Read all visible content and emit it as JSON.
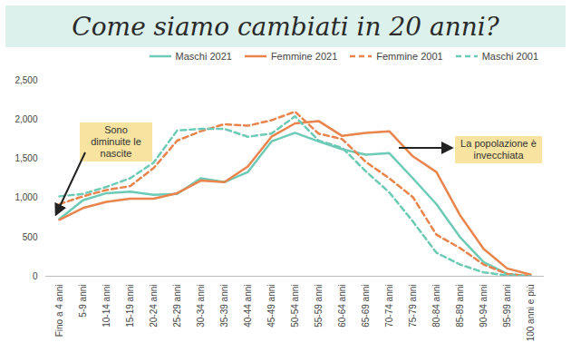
{
  "chart_data": {
    "type": "line",
    "title": "Come siamo cambiati in 20 anni?",
    "annotations": [
      "Sono diminuite le nascite",
      "La popolazione è invecchiata"
    ],
    "categories": [
      "Fino a 4 anni",
      "5-9 anni",
      "10-14 anni",
      "15-19 anni",
      "20-24 anni",
      "25-29 anni",
      "30-34 anni",
      "35-39 anni",
      "40-44 anni",
      "45-49 anni",
      "50-54 anni",
      "55-59 anni",
      "60-64 anni",
      "65-69 anni",
      "70-74 anni",
      "75-79 anni",
      "80-84 anni",
      "85-89 anni",
      "90-94 anni",
      "95-99 anni",
      "100 anni e più"
    ],
    "series": [
      {
        "name": "Maschi 2021",
        "color": "#6ccab6",
        "line_style": "solid",
        "values": [
          730,
          970,
          1060,
          1080,
          1040,
          1050,
          1250,
          1200,
          1330,
          1720,
          1830,
          1720,
          1620,
          1550,
          1570,
          1250,
          920,
          500,
          180,
          30,
          0
        ]
      },
      {
        "name": "Femmine 2021",
        "color": "#e8844c",
        "line_style": "solid",
        "values": [
          720,
          870,
          950,
          990,
          990,
          1060,
          1220,
          1200,
          1400,
          1780,
          1950,
          1980,
          1790,
          1830,
          1850,
          1530,
          1330,
          780,
          350,
          100,
          20
        ]
      },
      {
        "name": "Femmine 2001",
        "color": "#e8844c",
        "line_style": "dashed",
        "values": [
          920,
          1020,
          1100,
          1150,
          1380,
          1730,
          1850,
          1940,
          1920,
          1990,
          2100,
          1820,
          1750,
          1460,
          1250,
          1010,
          530,
          360,
          150,
          30,
          0
        ]
      },
      {
        "name": "Maschi 2001",
        "color": "#6ccab6",
        "line_style": "dashed",
        "values": [
          1020,
          1050,
          1140,
          1250,
          1450,
          1860,
          1880,
          1880,
          1780,
          1820,
          2040,
          1730,
          1640,
          1340,
          1070,
          700,
          300,
          150,
          50,
          10,
          0
        ]
      }
    ],
    "ylim": [
      0,
      2500
    ],
    "yticks": [
      0,
      500,
      1000,
      1500,
      2000,
      2500
    ]
  }
}
